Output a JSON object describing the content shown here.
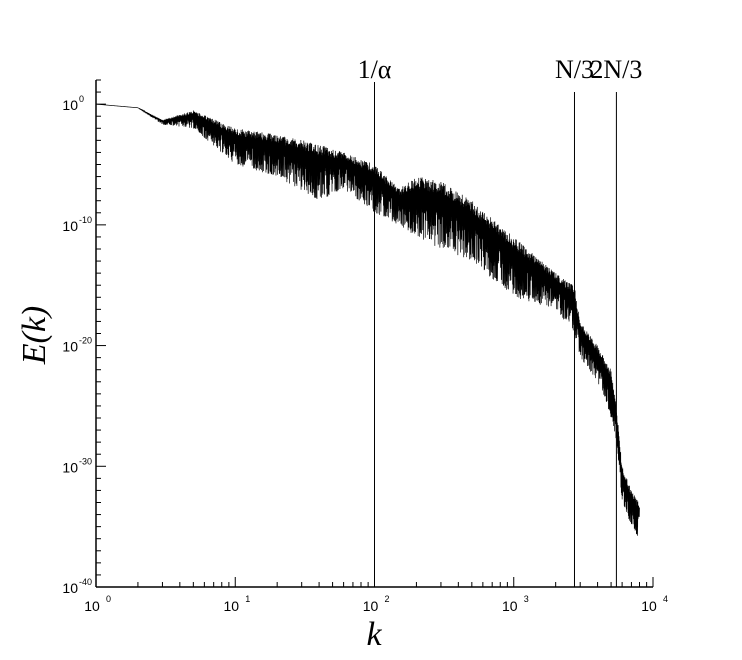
{
  "chart_data": {
    "type": "line",
    "title": "",
    "xlabel": "k",
    "ylabel": "E(k)",
    "x_scale": "log",
    "y_scale": "log",
    "xlim": [
      1,
      10000
    ],
    "ylim": [
      1e-40,
      100.0
    ],
    "grid": false,
    "legend": "none",
    "x_ticks": [
      {
        "base": "10",
        "exp": "0",
        "value": 1
      },
      {
        "base": "10",
        "exp": "1",
        "value": 10
      },
      {
        "base": "10",
        "exp": "2",
        "value": 100
      },
      {
        "base": "10",
        "exp": "3",
        "value": 1000
      },
      {
        "base": "10",
        "exp": "4",
        "value": 10000
      }
    ],
    "y_ticks": [
      {
        "base": "10",
        "exp": "0",
        "value": 1
      },
      {
        "base": "10",
        "exp": "-10",
        "value": 1e-10
      },
      {
        "base": "10",
        "exp": "-20",
        "value": 1e-20
      },
      {
        "base": "10",
        "exp": "-30",
        "value": 1e-30
      },
      {
        "base": "10",
        "exp": "-40",
        "value": 1e-40
      }
    ],
    "vertical_markers": [
      {
        "label": "1/α",
        "x": 100
      },
      {
        "label": "N/3",
        "x": 2730
      },
      {
        "label": "2N/3",
        "x": 5460
      }
    ],
    "series": [
      {
        "color": "#000000",
        "envelope_x": [
          1,
          2,
          3,
          5,
          10,
          20,
          40,
          60,
          100,
          150,
          200,
          300,
          500,
          1000,
          2000,
          2730,
          3000,
          4000,
          5000,
          5460,
          6000,
          7000,
          8000
        ],
        "envelope_y_upper": [
          1,
          0.5,
          0.05,
          0.3,
          0.01,
          0.003,
          0.0005,
          0.0001,
          1e-05,
          1e-07,
          1e-06,
          5e-07,
          1e-08,
          1e-11,
          1e-14,
          1e-15,
          1e-18,
          1e-20,
          1e-22,
          1e-25,
          1e-30,
          1e-32,
          1e-33
        ],
        "envelope_y_lower": [
          1,
          0.5,
          0.02,
          0.01,
          1e-05,
          1e-06,
          1e-08,
          1e-07,
          1e-09,
          1e-10,
          1e-11,
          1e-12,
          1e-13,
          1e-16,
          1e-17,
          1e-19,
          1e-21,
          1e-23,
          1e-26,
          1e-28,
          1e-33,
          1e-35,
          1e-36
        ]
      }
    ]
  }
}
